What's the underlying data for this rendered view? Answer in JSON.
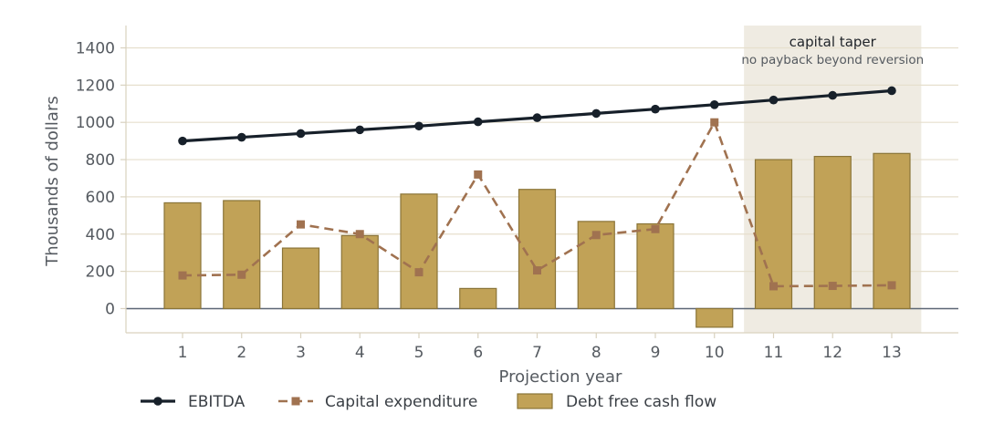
{
  "chart_data": {
    "type": "bar",
    "title": "",
    "xlabel": "Projection year",
    "ylabel": "Thousands of dollars",
    "categories": [
      "1",
      "2",
      "3",
      "4",
      "5",
      "6",
      "7",
      "8",
      "9",
      "10",
      "11",
      "12",
      "13"
    ],
    "ylim": [
      -130,
      1520
    ],
    "yticks": [
      0,
      200,
      400,
      600,
      800,
      1000,
      1200,
      1400
    ],
    "grid": "horizontal",
    "legend_placement": "bottom",
    "series": [
      {
        "name": "EBITDA",
        "kind": "line",
        "style": "solid",
        "marker": "circle",
        "color": "#17202a",
        "values": [
          900,
          920,
          940,
          960,
          980,
          1003,
          1025,
          1048,
          1071,
          1095,
          1120,
          1145,
          1170
        ]
      },
      {
        "name": "Capital expenditure",
        "kind": "line",
        "style": "dashed",
        "marker": "square",
        "color": "#a07250",
        "values": [
          178,
          182,
          452,
          400,
          195,
          720,
          205,
          395,
          427,
          1000,
          120,
          122,
          125
        ]
      },
      {
        "name": "Debt free cash flow",
        "kind": "bar",
        "color": "#c1a257",
        "edge_color": "#8a7438",
        "values": [
          568,
          580,
          325,
          392,
          615,
          108,
          640,
          468,
          455,
          -100,
          800,
          817,
          833
        ]
      }
    ],
    "annotation": {
      "title": "capital taper",
      "subtitle": "no payback beyond reversion",
      "span": [
        11,
        13
      ],
      "color": "#efebe2"
    },
    "colors": {
      "grid": "#e6dfcd",
      "zero_line": "#5c6675",
      "axis": "#d9d2bf"
    }
  }
}
